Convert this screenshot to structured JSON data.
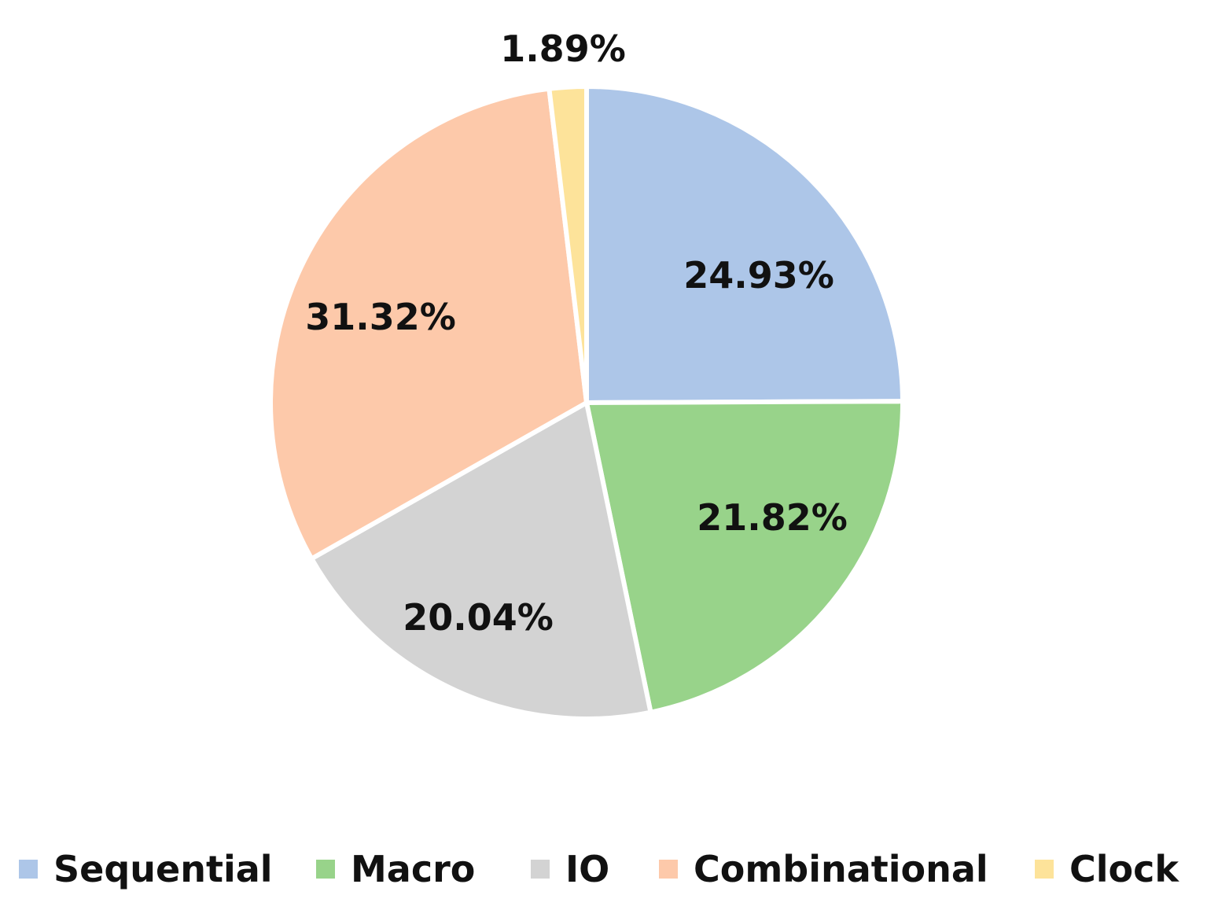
{
  "chart_data": {
    "type": "pie",
    "title": "",
    "start_angle_deg": 0,
    "direction": "clockwise",
    "legend_position": "bottom",
    "slices": [
      {
        "name": "Sequential",
        "value": 24.93,
        "label": "24.93%",
        "color": "#adc6e8"
      },
      {
        "name": "Macro",
        "value": 21.82,
        "label": "21.82%",
        "color": "#98d38a"
      },
      {
        "name": "IO",
        "value": 20.04,
        "label": "20.04%",
        "color": "#d3d3d3"
      },
      {
        "name": "Combinational",
        "value": 31.32,
        "label": "31.32%",
        "color": "#fdc9aa"
      },
      {
        "name": "Clock",
        "value": 1.89,
        "label": "1.89%",
        "color": "#fde39a"
      }
    ]
  }
}
